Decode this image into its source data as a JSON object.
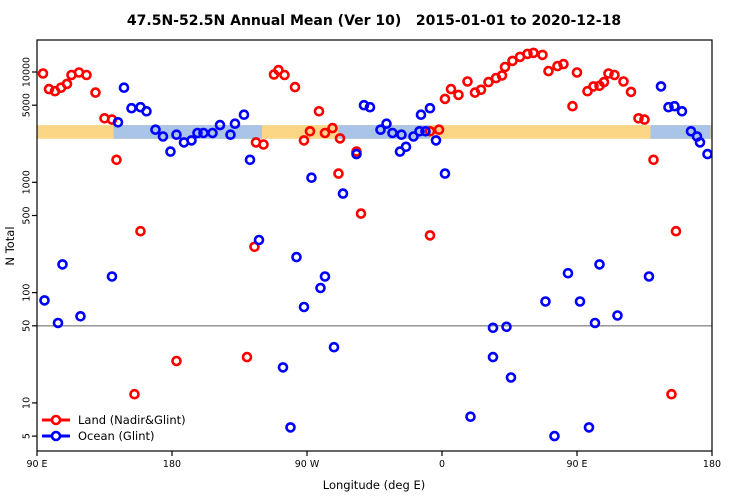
{
  "legend": {
    "items": [
      {
        "label": "Land (Nadir&Glint)",
        "color": "#FF0000"
      },
      {
        "label": "Ocean (Glint)",
        "color": "#0000FF"
      }
    ]
  },
  "chart_data": {
    "type": "scatter",
    "title": "47.5N-52.5N Annual Mean (Ver 10)   2015-01-01 to 2020-12-18",
    "xlabel": "Longitude (deg E)",
    "ylabel": "N Total",
    "x_axis": {
      "range": [
        90,
        540
      ],
      "ticks": [
        90,
        180,
        270,
        360,
        450,
        540
      ],
      "tick_labels": [
        "90 E",
        "180",
        "90 W",
        "0",
        "90 E",
        "180"
      ],
      "note": "longitude axis wraps 1.25 turns: 90E to 180 to 90W to 0 to 90E to 180; stored x = degrees traveled east from start (90..540)"
    },
    "y_axis": {
      "scale": "log10",
      "range": [
        3.7,
        19500
      ],
      "ticks": [
        5,
        10,
        50,
        100,
        500,
        1000,
        5000,
        10000
      ],
      "tick_labels": [
        "5",
        "10",
        "50",
        "100",
        "500",
        "1000",
        "5000",
        "10000"
      ],
      "grid": false
    },
    "reference_line": {
      "y": 50,
      "color": "#8C8C8C"
    },
    "bands": [
      {
        "name": "land-annual-mean-band",
        "color": "#FBD685",
        "x_range": [
          90,
          540
        ],
        "value_range": [
          2480,
          3300
        ]
      },
      {
        "name": "ocean-annual-mean-band",
        "color": "#A9C4E6",
        "segments": [
          [
            141,
            240
          ],
          [
            291,
            352
          ],
          [
            499,
            539
          ]
        ],
        "value_range": [
          2480,
          3300
        ]
      }
    ],
    "series": [
      {
        "name": "Land (Nadir&Glint)",
        "color": "#FF0000",
        "marker": "open-circle",
        "points": [
          [
            94,
            9700
          ],
          [
            98,
            7000
          ],
          [
            102,
            6700
          ],
          [
            106,
            7200
          ],
          [
            110,
            7800
          ],
          [
            113,
            9400
          ],
          [
            118,
            9900
          ],
          [
            123,
            9400
          ],
          [
            129,
            6500
          ],
          [
            135,
            3800
          ],
          [
            140,
            3700
          ],
          [
            143,
            1600
          ],
          [
            155,
            12
          ],
          [
            159,
            360
          ],
          [
            183,
            24
          ],
          [
            230,
            26
          ],
          [
            235,
            260
          ],
          [
            236,
            2300
          ],
          [
            241,
            2200
          ],
          [
            248,
            9500
          ],
          [
            251,
            10400
          ],
          [
            255,
            9400
          ],
          [
            262,
            7300
          ],
          [
            268,
            2400
          ],
          [
            272,
            2900
          ],
          [
            278,
            4400
          ],
          [
            282,
            2800
          ],
          [
            287,
            3100
          ],
          [
            291,
            1200
          ],
          [
            292,
            2500
          ],
          [
            303,
            1900
          ],
          [
            306,
            520
          ],
          [
            352,
            330
          ],
          [
            352,
            2900
          ],
          [
            358,
            3000
          ],
          [
            362,
            5700
          ],
          [
            366,
            7000
          ],
          [
            371,
            6200
          ],
          [
            377,
            8200
          ],
          [
            382,
            6500
          ],
          [
            386,
            6900
          ],
          [
            391,
            8100
          ],
          [
            396,
            8800
          ],
          [
            400,
            9300
          ],
          [
            402,
            11100
          ],
          [
            407,
            12600
          ],
          [
            412,
            13700
          ],
          [
            417,
            14600
          ],
          [
            421,
            14900
          ],
          [
            427,
            14300
          ],
          [
            431,
            10200
          ],
          [
            437,
            11300
          ],
          [
            441,
            11800
          ],
          [
            447,
            4900
          ],
          [
            450,
            9900
          ],
          [
            457,
            6700
          ],
          [
            461,
            7400
          ],
          [
            465,
            7500
          ],
          [
            468,
            8100
          ],
          [
            471,
            9700
          ],
          [
            475,
            9400
          ],
          [
            481,
            8200
          ],
          [
            486,
            6600
          ],
          [
            491,
            3800
          ],
          [
            495,
            3700
          ],
          [
            501,
            1600
          ],
          [
            513,
            12
          ],
          [
            516,
            360
          ]
        ]
      },
      {
        "name": "Ocean (Glint)",
        "color": "#0000FF",
        "marker": "open-circle",
        "points": [
          [
            95,
            85
          ],
          [
            104,
            53
          ],
          [
            107,
            180
          ],
          [
            119,
            61
          ],
          [
            140,
            140
          ],
          [
            144,
            3500
          ],
          [
            148,
            7200
          ],
          [
            153,
            4700
          ],
          [
            159,
            4800
          ],
          [
            163,
            4400
          ],
          [
            169,
            3000
          ],
          [
            174,
            2600
          ],
          [
            179,
            1900
          ],
          [
            183,
            2700
          ],
          [
            188,
            2300
          ],
          [
            193,
            2400
          ],
          [
            197,
            2800
          ],
          [
            201,
            2800
          ],
          [
            207,
            2800
          ],
          [
            212,
            3300
          ],
          [
            219,
            2700
          ],
          [
            222,
            3400
          ],
          [
            228,
            4100
          ],
          [
            232,
            1600
          ],
          [
            238,
            300
          ],
          [
            254,
            21
          ],
          [
            259,
            6
          ],
          [
            263,
            210
          ],
          [
            268,
            74
          ],
          [
            273,
            1100
          ],
          [
            279,
            110
          ],
          [
            282,
            140
          ],
          [
            288,
            32
          ],
          [
            294,
            790
          ],
          [
            303,
            1800
          ],
          [
            308,
            5000
          ],
          [
            312,
            4800
          ],
          [
            319,
            3000
          ],
          [
            323,
            3400
          ],
          [
            327,
            2800
          ],
          [
            332,
            1900
          ],
          [
            333,
            2700
          ],
          [
            336,
            2100
          ],
          [
            341,
            2600
          ],
          [
            345,
            2900
          ],
          [
            346,
            4100
          ],
          [
            349,
            2900
          ],
          [
            352,
            4700
          ],
          [
            356,
            2400
          ],
          [
            362,
            1200
          ],
          [
            379,
            7.5
          ],
          [
            394,
            48
          ],
          [
            394,
            26
          ],
          [
            403,
            49
          ],
          [
            406,
            17
          ],
          [
            429,
            83
          ],
          [
            435,
            5
          ],
          [
            444,
            150
          ],
          [
            452,
            83
          ],
          [
            458,
            6
          ],
          [
            462,
            53
          ],
          [
            465,
            180
          ],
          [
            477,
            62
          ],
          [
            498,
            140
          ],
          [
            506,
            7400
          ],
          [
            511,
            4800
          ],
          [
            515,
            4900
          ],
          [
            520,
            4400
          ],
          [
            526,
            2900
          ],
          [
            530,
            2600
          ],
          [
            532,
            2300
          ],
          [
            537,
            1800
          ]
        ]
      }
    ]
  }
}
